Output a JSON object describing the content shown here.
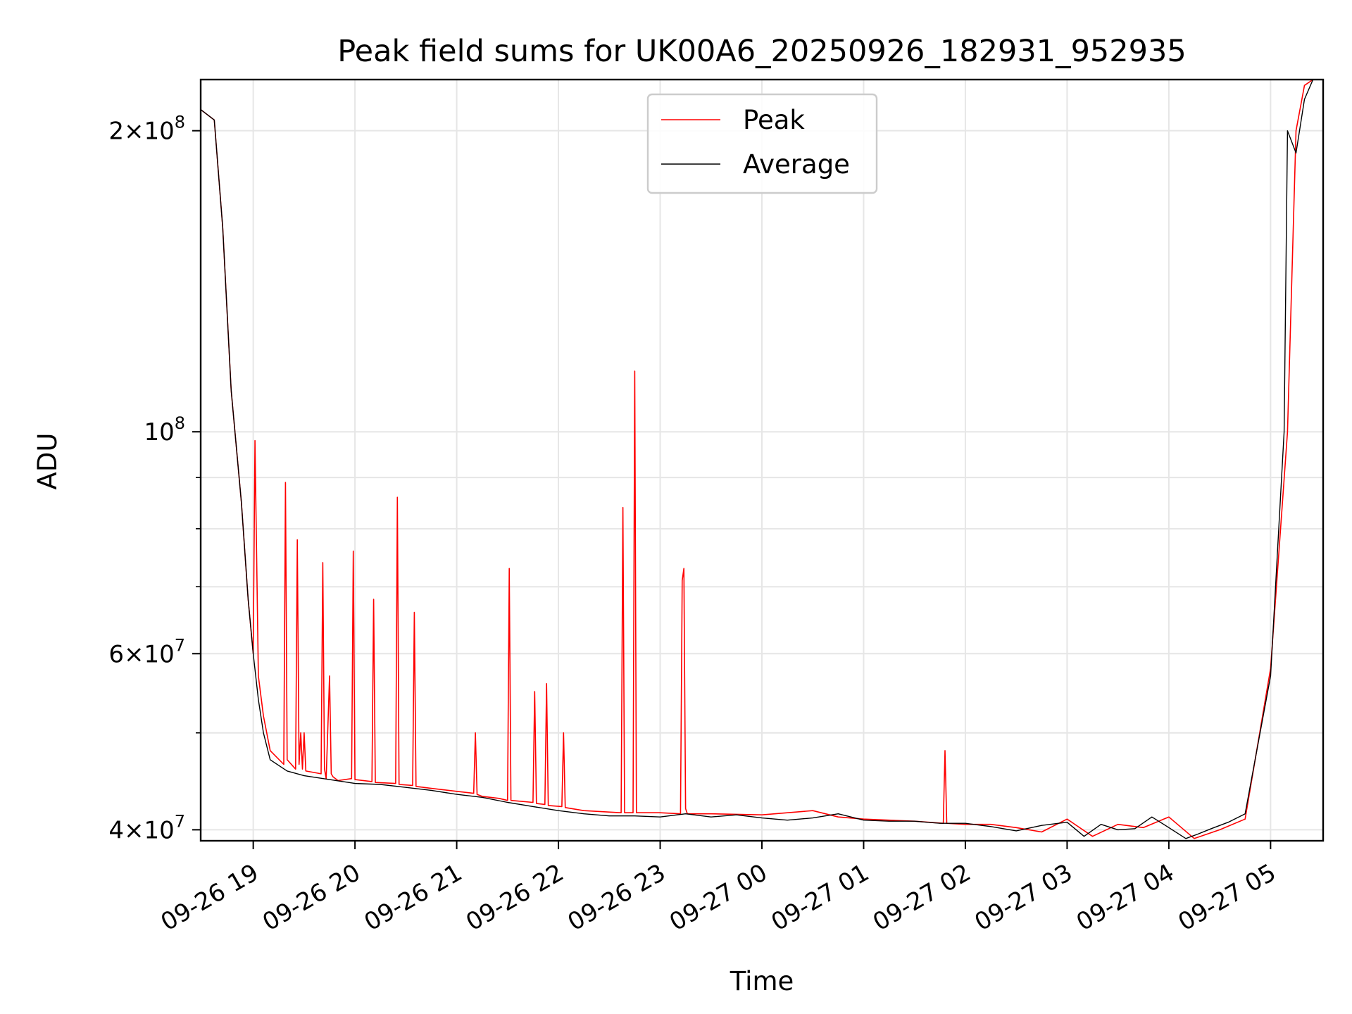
{
  "chart_data": {
    "type": "line",
    "title": "Peak field sums for UK00A6_20250926_182931_952935",
    "xlabel": "Time",
    "ylabel": "ADU",
    "x_scale": "time",
    "y_scale": "log",
    "xlim": [
      "2025-09-26 18:29",
      "2025-09-27 05:31"
    ],
    "ylim": [
      39000000,
      225000000
    ],
    "grid": true,
    "legend_position": "upper center",
    "x_tick_labels": [
      "09-26 19",
      "09-26 20",
      "09-26 21",
      "09-26 22",
      "09-26 23",
      "09-27 00",
      "09-27 01",
      "09-27 02",
      "09-27 03",
      "09-27 04",
      "09-27 05"
    ],
    "x_tick_values": [
      "2025-09-26 19:00",
      "2025-09-26 20:00",
      "2025-09-26 21:00",
      "2025-09-26 22:00",
      "2025-09-26 23:00",
      "2025-09-27 00:00",
      "2025-09-27 01:00",
      "2025-09-27 02:00",
      "2025-09-27 03:00",
      "2025-09-27 04:00",
      "2025-09-27 05:00"
    ],
    "y_major_ticks": [
      {
        "value": 40000000,
        "mantissa": "4",
        "exponent": "7"
      },
      {
        "value": 60000000,
        "mantissa": "6",
        "exponent": "7"
      },
      {
        "value": 100000000,
        "mantissa": "",
        "exponent": "8"
      },
      {
        "value": 200000000,
        "mantissa": "2",
        "exponent": "8"
      }
    ],
    "y_minor_ticks": [
      50000000,
      70000000,
      80000000,
      90000000
    ],
    "series": [
      {
        "name": "Peak",
        "color": "#ff0000",
        "x": [
          "2025-09-26 18:29",
          "2025-09-26 18:37",
          "2025-09-26 18:42",
          "2025-09-26 18:47",
          "2025-09-26 18:53",
          "2025-09-26 18:57",
          "2025-09-26 19:00",
          "2025-09-26 19:01",
          "2025-09-26 19:03",
          "2025-09-26 19:06",
          "2025-09-26 19:10",
          "2025-09-26 19:18",
          "2025-09-26 19:19",
          "2025-09-26 19:20",
          "2025-09-26 19:25",
          "2025-09-26 19:26",
          "2025-09-26 19:27",
          "2025-09-26 19:28",
          "2025-09-26 19:29",
          "2025-09-26 19:30",
          "2025-09-26 19:31",
          "2025-09-26 19:40",
          "2025-09-26 19:41",
          "2025-09-26 19:42",
          "2025-09-26 19:43",
          "2025-09-26 19:45",
          "2025-09-26 19:46",
          "2025-09-26 19:47",
          "2025-09-26 19:50",
          "2025-09-26 19:58",
          "2025-09-26 19:59",
          "2025-09-26 20:00",
          "2025-09-26 20:10",
          "2025-09-26 20:11",
          "2025-09-26 20:12",
          "2025-09-26 20:24",
          "2025-09-26 20:25",
          "2025-09-26 20:26",
          "2025-09-26 20:34",
          "2025-09-26 20:35",
          "2025-09-26 20:36",
          "2025-09-26 20:45",
          "2025-09-26 21:00",
          "2025-09-26 21:10",
          "2025-09-26 21:11",
          "2025-09-26 21:12",
          "2025-09-26 21:15",
          "2025-09-26 21:25",
          "2025-09-26 21:30",
          "2025-09-26 21:31",
          "2025-09-26 21:32",
          "2025-09-26 21:45",
          "2025-09-26 21:46",
          "2025-09-26 21:47",
          "2025-09-26 21:52",
          "2025-09-26 21:53",
          "2025-09-26 21:54",
          "2025-09-26 22:02",
          "2025-09-26 22:03",
          "2025-09-26 22:04",
          "2025-09-26 22:15",
          "2025-09-26 22:37",
          "2025-09-26 22:38",
          "2025-09-26 22:39",
          "2025-09-26 22:44",
          "2025-09-26 22:45",
          "2025-09-26 22:46",
          "2025-09-26 23:00",
          "2025-09-26 23:12",
          "2025-09-26 23:13",
          "2025-09-26 23:14",
          "2025-09-26 23:15",
          "2025-09-26 23:16",
          "2025-09-26 23:30",
          "2025-09-27 00:00",
          "2025-09-27 00:30",
          "2025-09-27 00:45",
          "2025-09-27 01:00",
          "2025-09-27 01:30",
          "2025-09-27 01:47",
          "2025-09-27 01:48",
          "2025-09-27 01:49",
          "2025-09-27 02:00",
          "2025-09-27 02:15",
          "2025-09-27 02:30",
          "2025-09-27 02:45",
          "2025-09-27 03:00",
          "2025-09-27 03:15",
          "2025-09-27 03:30",
          "2025-09-27 03:45",
          "2025-09-27 04:00",
          "2025-09-27 04:15",
          "2025-09-27 04:30",
          "2025-09-27 04:45",
          "2025-09-27 05:00",
          "2025-09-27 05:10",
          "2025-09-27 05:15",
          "2025-09-27 05:20",
          "2025-09-27 05:25",
          "2025-09-27 05:31"
        ],
        "y": [
          210000000,
          205000000,
          160000000,
          110000000,
          85000000,
          68000000,
          60000000,
          98000000,
          57000000,
          52000000,
          48000000,
          46500000,
          89000000,
          47000000,
          46000000,
          78000000,
          46500000,
          50000000,
          46000000,
          50000000,
          45800000,
          45500000,
          74000000,
          46000000,
          45000000,
          57000000,
          45500000,
          45200000,
          44800000,
          45000000,
          76000000,
          44900000,
          44700000,
          68000000,
          44600000,
          44500000,
          86000000,
          44400000,
          44300000,
          66000000,
          44200000,
          44000000,
          43700000,
          43500000,
          50000000,
          43400000,
          43200000,
          43000000,
          42800000,
          73000000,
          42800000,
          42600000,
          55000000,
          42500000,
          42400000,
          56000000,
          42300000,
          42200000,
          50000000,
          42100000,
          41800000,
          41600000,
          84000000,
          41600000,
          41600000,
          115000000,
          41600000,
          41600000,
          41500000,
          71000000,
          73000000,
          42000000,
          41500000,
          41500000,
          41400000,
          41800000,
          41200000,
          41000000,
          40800000,
          40600000,
          48000000,
          40600000,
          40500000,
          40500000,
          40200000,
          39800000,
          41000000,
          39400000,
          40500000,
          40200000,
          41200000,
          39200000,
          40000000,
          41000000,
          58000000,
          100000000,
          200000000,
          222000000,
          225000000,
          225000000
        ]
      },
      {
        "name": "Average",
        "color": "#000000",
        "x": [
          "2025-09-26 18:29",
          "2025-09-26 18:37",
          "2025-09-26 18:42",
          "2025-09-26 18:47",
          "2025-09-26 18:53",
          "2025-09-26 18:57",
          "2025-09-26 19:00",
          "2025-09-26 19:03",
          "2025-09-26 19:06",
          "2025-09-26 19:10",
          "2025-09-26 19:20",
          "2025-09-26 19:30",
          "2025-09-26 19:45",
          "2025-09-26 20:00",
          "2025-09-26 20:15",
          "2025-09-26 20:30",
          "2025-09-26 20:45",
          "2025-09-26 21:00",
          "2025-09-26 21:15",
          "2025-09-26 21:30",
          "2025-09-26 21:45",
          "2025-09-26 22:00",
          "2025-09-26 22:15",
          "2025-09-26 22:30",
          "2025-09-26 22:45",
          "2025-09-26 23:00",
          "2025-09-26 23:15",
          "2025-09-26 23:30",
          "2025-09-26 23:45",
          "2025-09-27 00:00",
          "2025-09-27 00:15",
          "2025-09-27 00:30",
          "2025-09-27 00:45",
          "2025-09-27 01:00",
          "2025-09-27 01:15",
          "2025-09-27 01:30",
          "2025-09-27 01:45",
          "2025-09-27 02:00",
          "2025-09-27 02:15",
          "2025-09-27 02:30",
          "2025-09-27 02:45",
          "2025-09-27 03:00",
          "2025-09-27 03:10",
          "2025-09-27 03:20",
          "2025-09-27 03:30",
          "2025-09-27 03:40",
          "2025-09-27 03:50",
          "2025-09-27 04:00",
          "2025-09-27 04:10",
          "2025-09-27 04:17",
          "2025-09-27 04:25",
          "2025-09-27 04:35",
          "2025-09-27 04:45",
          "2025-09-27 05:00",
          "2025-09-27 05:08",
          "2025-09-27 05:10",
          "2025-09-27 05:15",
          "2025-09-27 05:20",
          "2025-09-27 05:25",
          "2025-09-27 05:31"
        ],
        "y": [
          210000000,
          205000000,
          160000000,
          110000000,
          85000000,
          68000000,
          60000000,
          54000000,
          50000000,
          47000000,
          45800000,
          45300000,
          44900000,
          44500000,
          44400000,
          44100000,
          43800000,
          43400000,
          43100000,
          42600000,
          42200000,
          41800000,
          41500000,
          41300000,
          41300000,
          41200000,
          41500000,
          41200000,
          41400000,
          41100000,
          40900000,
          41100000,
          41500000,
          40900000,
          40800000,
          40800000,
          40600000,
          40600000,
          40300000,
          39900000,
          40400000,
          40700000,
          39400000,
          40500000,
          40000000,
          40100000,
          41200000,
          40200000,
          39200000,
          39600000,
          40100000,
          40700000,
          41500000,
          57000000,
          100000000,
          200000000,
          190000000,
          215000000,
          225000000,
          225000000
        ]
      }
    ]
  }
}
